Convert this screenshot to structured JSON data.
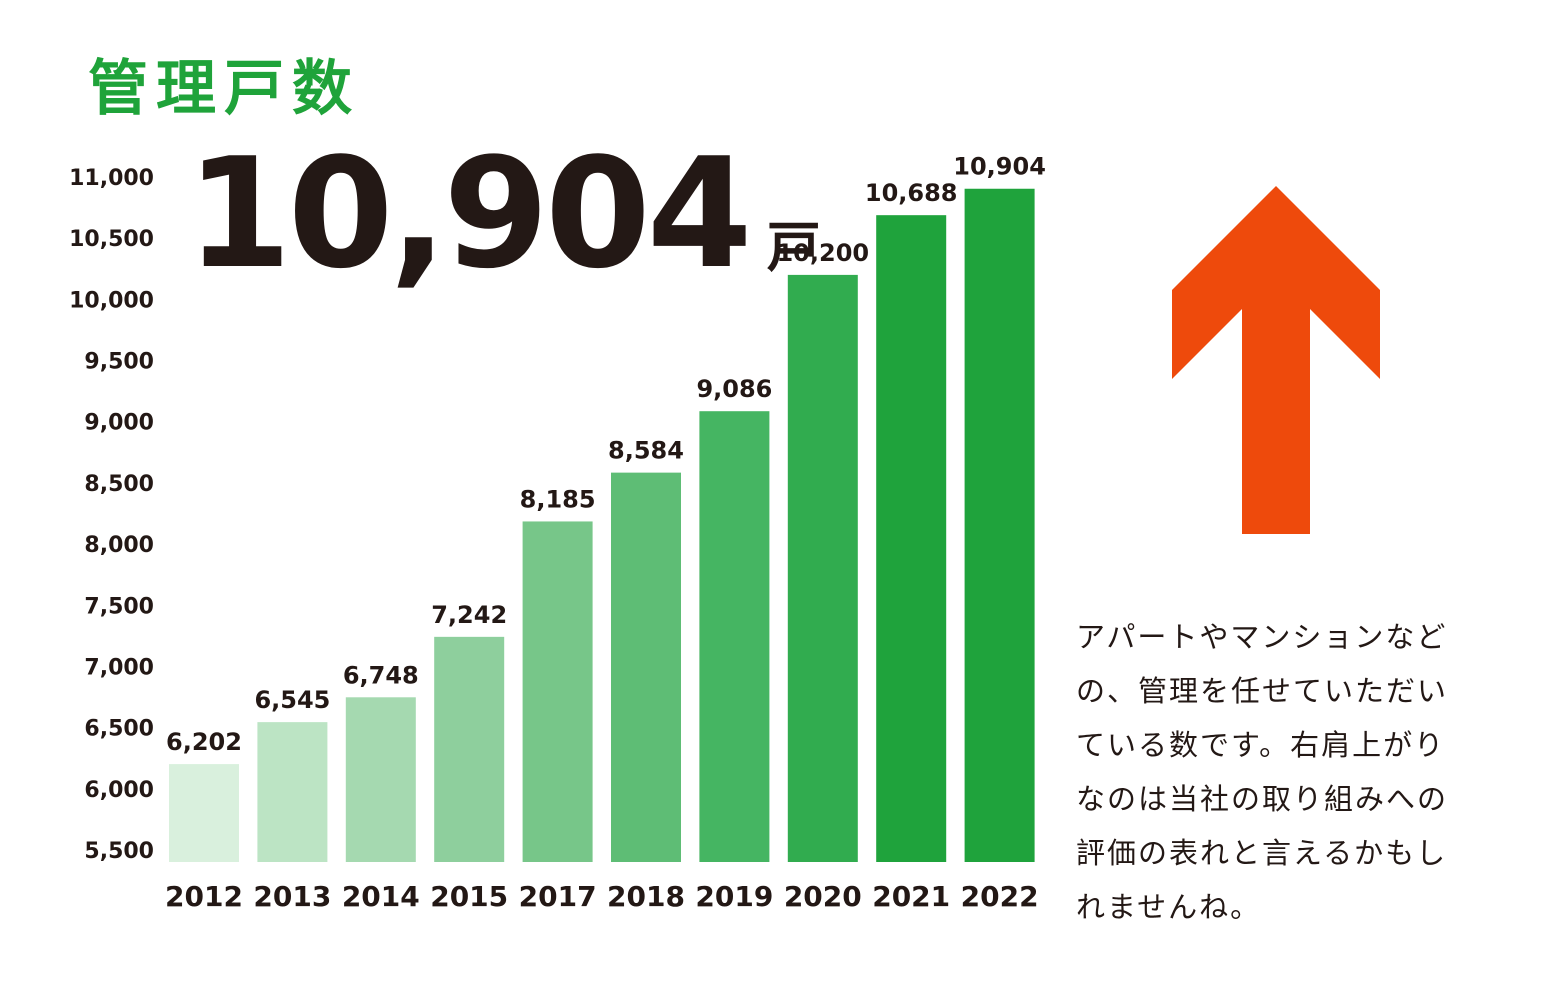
{
  "header": {
    "title": "管理戸数",
    "highlight_value": "10,904",
    "highlight_unit": "戸"
  },
  "note": {
    "text": "アパートやマンションなどの、管理を任せていただいている数です。右肩上がりなのは当社の取り組みへの評価の表れと言えるかもしれませんね。"
  },
  "arrow": {
    "icon": "up-arrow-icon",
    "color": "#ee4a0c"
  },
  "chart_data": {
    "type": "bar",
    "categories": [
      "2012",
      "2013",
      "2014",
      "2015",
      "2017",
      "2018",
      "2019",
      "2020",
      "2021",
      "2022"
    ],
    "values": [
      6202,
      6545,
      6748,
      7242,
      8185,
      8584,
      9086,
      10200,
      10688,
      10904
    ],
    "value_labels": [
      "6,202",
      "6,545",
      "6,748",
      "7,242",
      "8,185",
      "8,584",
      "9,086",
      "10,200",
      "10,688",
      "10,904"
    ],
    "bar_colors": [
      "#d9f0dd",
      "#bce4c4",
      "#a5d9b0",
      "#8ecf9d",
      "#77c689",
      "#5ebd75",
      "#45b562",
      "#31ac4f",
      "#1fa33c",
      "#1fa33c"
    ],
    "ylim": [
      5500,
      11000
    ],
    "yticks": [
      5500,
      6000,
      6500,
      7000,
      7500,
      8000,
      8500,
      9000,
      9500,
      10000,
      10500,
      11000
    ],
    "ytick_labels": [
      "5,500",
      "6,000",
      "6,500",
      "7,000",
      "7,500",
      "8,000",
      "8,500",
      "9,000",
      "9,500",
      "10,000",
      "10,500",
      "11,000"
    ],
    "grid": false,
    "legend": "none"
  }
}
